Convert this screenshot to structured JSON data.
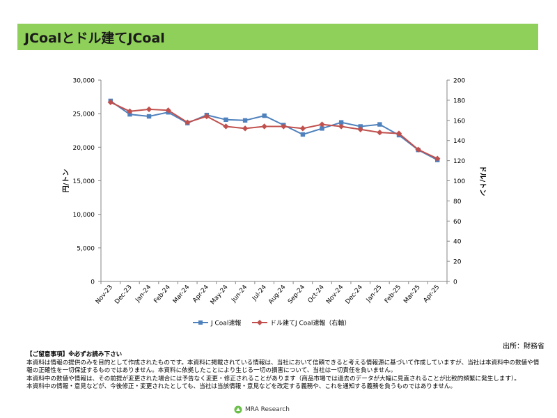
{
  "header": {
    "title": "JCoalとドル建てJCoal"
  },
  "chart_data": {
    "type": "line",
    "categories": [
      "Nov-23",
      "Dec-23",
      "Jan-24",
      "Feb-24",
      "Mar-24",
      "Apr-24",
      "May-24",
      "Jun-24",
      "Jul-24",
      "Aug-24",
      "Sep-24",
      "Oct-24",
      "Nov-24",
      "Dec-24",
      "Jan-25",
      "Feb-25",
      "Mar-25",
      "Apr-25"
    ],
    "series": [
      {
        "name": "J Coal速報",
        "axis": "left",
        "color": "#4f81bd",
        "marker": "square",
        "values": [
          26900,
          24900,
          24600,
          25200,
          23600,
          24800,
          24100,
          24000,
          24700,
          23300,
          21900,
          22800,
          23700,
          23100,
          23400,
          21800,
          19600,
          18100
        ]
      },
      {
        "name": "ドル建てJ Coal速報（右軸）",
        "axis": "right",
        "color": "#c0504d",
        "marker": "diamond",
        "values": [
          178,
          169,
          171,
          170,
          158,
          164,
          154,
          152,
          154,
          154,
          152,
          156,
          154,
          151,
          148,
          147,
          131,
          122
        ]
      }
    ],
    "ylabel": "円/トン",
    "y2label": "ドル/トン",
    "ylim": [
      0,
      30000
    ],
    "y2lim": [
      0,
      200
    ],
    "yticks": [
      "0",
      "5,000",
      "10,000",
      "15,000",
      "20,000",
      "25,000",
      "30,000"
    ],
    "y2ticks": [
      "0",
      "20",
      "40",
      "60",
      "80",
      "100",
      "120",
      "140",
      "160",
      "180",
      "200"
    ],
    "grid": false,
    "legend": "bottom"
  },
  "source": "出所：財務省",
  "notes": {
    "header": "【ご留意事項】※必ずお読み下さい",
    "lines": [
      "本資料は情報の提供のみを目的として作成されたものです。本資料に掲載されている情報は、当社において信頼できると考える情報源に基づいて作成していますが、当社は本資料中の数値や情報の正確性を一切保証するものではありません。本資料に依拠したことにより生じる一切の損害について、当社は一切責任を負いません。",
      "本資料中の数値や情報は、その前提が変更された場合には予告なく変更・修正されることがあります（商品市場では過去のデータが大幅に見直されることが比較的頻繁に発生します）。",
      "本資料中の情報・意見などが、今後修正・変更されたとしても、当社は当該情報・意見などを改定する義務や、これを通知する義務を負うものではありません。"
    ]
  },
  "logo": {
    "text": "MRA Research"
  }
}
